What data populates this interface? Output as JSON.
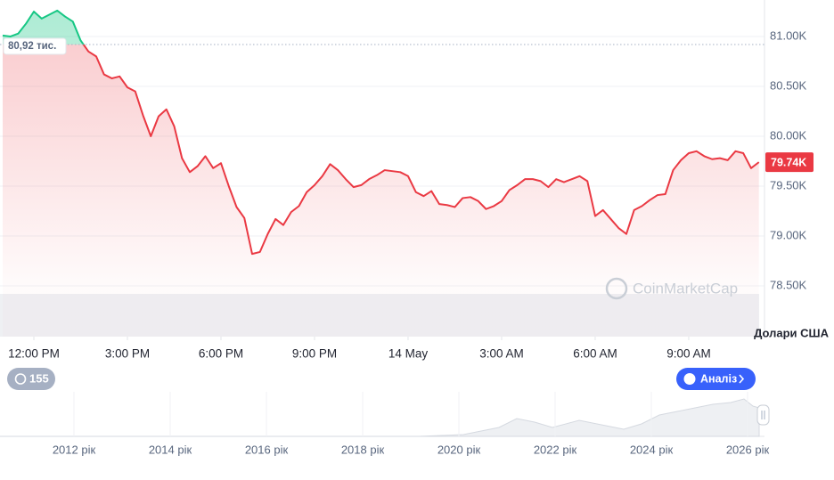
{
  "chart_data": {
    "type": "line",
    "x": [
      11,
      11.25,
      11.5,
      11.75,
      12,
      12.25,
      12.5,
      12.75,
      13,
      13.25,
      13.5,
      13.75,
      14,
      14.25,
      14.5,
      14.75,
      15,
      15.25,
      15.5,
      15.75,
      16,
      16.25,
      16.5,
      16.75,
      17,
      17.25,
      17.5,
      17.75,
      18,
      18.25,
      18.5,
      18.75,
      19,
      19.25,
      19.5,
      19.75,
      20,
      20.25,
      20.5,
      20.75,
      21,
      21.25,
      21.5,
      21.75,
      22,
      22.25,
      22.5,
      22.75,
      23,
      23.25,
      23.5,
      23.75,
      24,
      24.25,
      24.5,
      24.75,
      25,
      25.25,
      25.5,
      25.75,
      26,
      26.25,
      26.5,
      26.75,
      27,
      27.25,
      27.5,
      27.75,
      28,
      28.25,
      28.5,
      28.75,
      29,
      29.25,
      29.5,
      29.75,
      30,
      30.25,
      30.5,
      30.75,
      31,
      31.25,
      31.5,
      31.75,
      32,
      32.25,
      32.5,
      32.75,
      33,
      33.25,
      33.5,
      33.75,
      34,
      34.25,
      34.5,
      34.75,
      35,
      35.25
    ],
    "values": [
      81010,
      81000,
      81030,
      81130,
      81250,
      81180,
      81220,
      81260,
      81200,
      81150,
      80960,
      80850,
      80800,
      80620,
      80580,
      80600,
      80490,
      80450,
      80210,
      80000,
      80200,
      80270,
      80100,
      79780,
      79640,
      79700,
      79800,
      79680,
      79730,
      79500,
      79290,
      79180,
      78820,
      78840,
      79020,
      79170,
      79110,
      79240,
      79300,
      79440,
      79510,
      79600,
      79720,
      79660,
      79570,
      79490,
      79510,
      79570,
      79610,
      79660,
      79650,
      79640,
      79600,
      79440,
      79400,
      79450,
      79320,
      79310,
      79290,
      79380,
      79390,
      79350,
      79270,
      79300,
      79350,
      79460,
      79510,
      79570,
      79570,
      79550,
      79490,
      79570,
      79540,
      79570,
      79600,
      79550,
      79200,
      79260,
      79170,
      79080,
      79020,
      79260,
      79300,
      79360,
      79410,
      79420,
      79660,
      79760,
      79830,
      79850,
      79800,
      79770,
      79780,
      79760,
      79850,
      79830,
      79680,
      79740
    ],
    "color": "#ea3943",
    "color_above": "#16c784",
    "reference": {
      "value": 80920,
      "label": "80,92 тис."
    },
    "last_price": {
      "value": 79740,
      "label": "79.74K"
    },
    "xlim": [
      10.914,
      35.43
    ],
    "xticks": [
      {
        "value": 12,
        "label": "12:00 PM"
      },
      {
        "value": 15,
        "label": "3:00 PM"
      },
      {
        "value": 18,
        "label": "6:00 PM"
      },
      {
        "value": 21,
        "label": "9:00 PM"
      },
      {
        "value": 24,
        "label": "14 May"
      },
      {
        "value": 27,
        "label": "3:00 AM"
      },
      {
        "value": 30,
        "label": "6:00 AM"
      },
      {
        "value": 33,
        "label": "9:00 AM"
      }
    ],
    "ylim": [
      77991,
      81366
    ],
    "yticks": [
      {
        "value": 78500,
        "label": "78.50K"
      },
      {
        "value": 79000,
        "label": "79.00K"
      },
      {
        "value": 79500,
        "label": "79.50K"
      },
      {
        "value": 80000,
        "label": "80.00K"
      },
      {
        "value": 80500,
        "label": "80.50K"
      },
      {
        "value": 81000,
        "label": "81.00K"
      }
    ],
    "grid": true,
    "y_axis_label": "Долари США",
    "watermark": "CoinMarketCap"
  },
  "history_badge": 155,
  "analysis_button": "Аналіз",
  "navigator": {
    "labels": [
      "2012 рік",
      "2014 рік",
      "2016 рік",
      "2018 рік",
      "2020 рік",
      "2022 рік",
      "2024 рік",
      "2026 рік"
    ]
  }
}
